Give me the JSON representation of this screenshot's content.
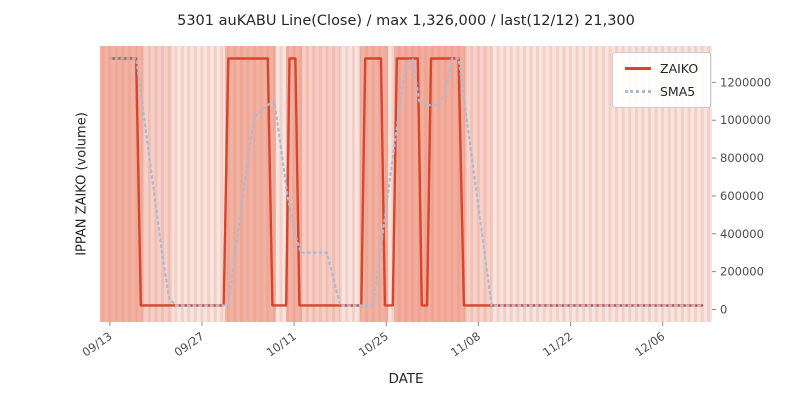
{
  "title": "5301 auKABU Line(Close) / max 1,326,000 / last(12/12) 21,300",
  "xlabel": "DATE",
  "ylabel": "IPPAN ZAIKO (volume)",
  "legend": {
    "zaiko": "ZAIKO",
    "sma5": "SMA5"
  },
  "colors": {
    "zaiko": "#d6452c",
    "sma5": "#a9bbd6",
    "band": "#ec8066",
    "plot_bg": "#f9e4e0",
    "stripe": "#edbdb2",
    "tick_text": "#4d4d4d",
    "title_text": "#262626"
  },
  "chart_data": {
    "type": "line",
    "title": "5301 auKABU Line(Close) / max 1,326,000 / last(12/12) 21,300",
    "xlabel": "DATE",
    "ylabel": "IPPAN ZAIKO (volume)",
    "x_unit": "days offset from 09/13 tick",
    "xlim": [
      -1.5,
      91.5
    ],
    "ylim": [
      -66300,
      1392300
    ],
    "grid": false,
    "legend_position": "upper right",
    "max_value": 1326000,
    "last_value": 21300,
    "last_label": "last(12/12) 21,300",
    "x_ticks": [
      {
        "day": 0,
        "label": "09/13"
      },
      {
        "day": 14,
        "label": "09/27"
      },
      {
        "day": 28,
        "label": "10/11"
      },
      {
        "day": 42,
        "label": "10/25"
      },
      {
        "day": 56,
        "label": "11/08"
      },
      {
        "day": 70,
        "label": "11/22"
      },
      {
        "day": 84,
        "label": "12/06"
      }
    ],
    "y_ticks": [
      {
        "value": 0,
        "label": "0"
      },
      {
        "value": 200000,
        "label": "200000"
      },
      {
        "value": 400000,
        "label": "400000"
      },
      {
        "value": 600000,
        "label": "600000"
      },
      {
        "value": 800000,
        "label": "800000"
      },
      {
        "value": 1000000,
        "label": "1000000"
      },
      {
        "value": 1200000,
        "label": "1200000"
      }
    ],
    "series": [
      {
        "name": "ZAIKO",
        "style": "solid",
        "color": "#d6452c",
        "width": 2.4,
        "points": [
          [
            0,
            1326000
          ],
          [
            4,
            1326000
          ],
          [
            4.7,
            21300
          ],
          [
            17.3,
            21300
          ],
          [
            18,
            1326000
          ],
          [
            24,
            1326000
          ],
          [
            24.7,
            21300
          ],
          [
            26.8,
            21300
          ],
          [
            27.3,
            1326000
          ],
          [
            28.2,
            1326000
          ],
          [
            28.8,
            21300
          ],
          [
            38.2,
            21300
          ],
          [
            38.8,
            1326000
          ],
          [
            41.2,
            1326000
          ],
          [
            41.8,
            21300
          ],
          [
            43,
            21300
          ],
          [
            43.6,
            1326000
          ],
          [
            46.8,
            1326000
          ],
          [
            47.4,
            21300
          ],
          [
            48.2,
            21300
          ],
          [
            48.8,
            1326000
          ],
          [
            53,
            1326000
          ],
          [
            53.8,
            21300
          ],
          [
            90,
            21300
          ]
        ]
      },
      {
        "name": "SMA5",
        "style": "dotted",
        "color": "#a9bbd6",
        "width": 2.2,
        "points": [
          [
            0,
            1326000
          ],
          [
            4,
            1326000
          ],
          [
            5,
            1065000
          ],
          [
            6,
            804000
          ],
          [
            7,
            543000
          ],
          [
            8,
            282000
          ],
          [
            9,
            60000
          ],
          [
            10,
            21300
          ],
          [
            18,
            21300
          ],
          [
            19,
            282000
          ],
          [
            20,
            543000
          ],
          [
            21,
            804000
          ],
          [
            22,
            1020000
          ],
          [
            23,
            1050000
          ],
          [
            24,
            1080000
          ],
          [
            25,
            1100000
          ],
          [
            26,
            850000
          ],
          [
            27,
            600000
          ],
          [
            28,
            420000
          ],
          [
            29,
            300000
          ],
          [
            33,
            300000
          ],
          [
            34,
            160000
          ],
          [
            35,
            21300
          ],
          [
            40,
            21300
          ],
          [
            41,
            282000
          ],
          [
            42,
            543000
          ],
          [
            43,
            804000
          ],
          [
            44,
            1065000
          ],
          [
            45,
            1300000
          ],
          [
            46,
            1326000
          ],
          [
            47,
            1100000
          ],
          [
            48,
            1080000
          ],
          [
            50,
            1080000
          ],
          [
            51,
            1150000
          ],
          [
            52,
            1326000
          ],
          [
            53,
            1326000
          ],
          [
            54,
            1065000
          ],
          [
            55,
            804000
          ],
          [
            56,
            543000
          ],
          [
            57,
            282000
          ],
          [
            58,
            21300
          ],
          [
            90,
            21300
          ]
        ]
      }
    ],
    "bands": [
      {
        "from": -1.5,
        "to": 5,
        "alpha": 0.5
      },
      {
        "from": 5,
        "to": 9.5,
        "alpha": 0.2
      },
      {
        "from": 17.5,
        "to": 25.2,
        "alpha": 0.5
      },
      {
        "from": 26.8,
        "to": 29.2,
        "alpha": 0.5
      },
      {
        "from": 29.2,
        "to": 35,
        "alpha": 0.22
      },
      {
        "from": 38,
        "to": 42.3,
        "alpha": 0.5
      },
      {
        "from": 43.2,
        "to": 54,
        "alpha": 0.55
      },
      {
        "from": 54,
        "to": 58,
        "alpha": 0.18
      }
    ]
  }
}
